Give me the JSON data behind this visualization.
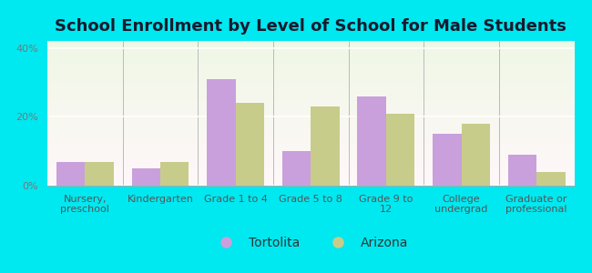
{
  "title": "School Enrollment by Level of School for Male Students",
  "categories": [
    "Nursery,\npreschool",
    "Kindergarten",
    "Grade 1 to 4",
    "Grade 5 to 8",
    "Grade 9 to\n12",
    "College\nundergrad",
    "Graduate or\nprofessional"
  ],
  "tortolita": [
    7,
    5,
    31,
    10,
    26,
    15,
    9
  ],
  "arizona": [
    7,
    7,
    24,
    23,
    21,
    18,
    4
  ],
  "tortolita_color": "#c9a0dc",
  "arizona_color": "#c8cc8a",
  "background_outer": "#00e8f0",
  "ylabel_ticks": [
    "0%",
    "20%",
    "40%"
  ],
  "yticks": [
    0,
    20,
    40
  ],
  "ylim": [
    0,
    42
  ],
  "legend_labels": [
    "Tortolita",
    "Arizona"
  ],
  "bar_width": 0.38,
  "title_fontsize": 13,
  "tick_fontsize": 8,
  "legend_fontsize": 10
}
